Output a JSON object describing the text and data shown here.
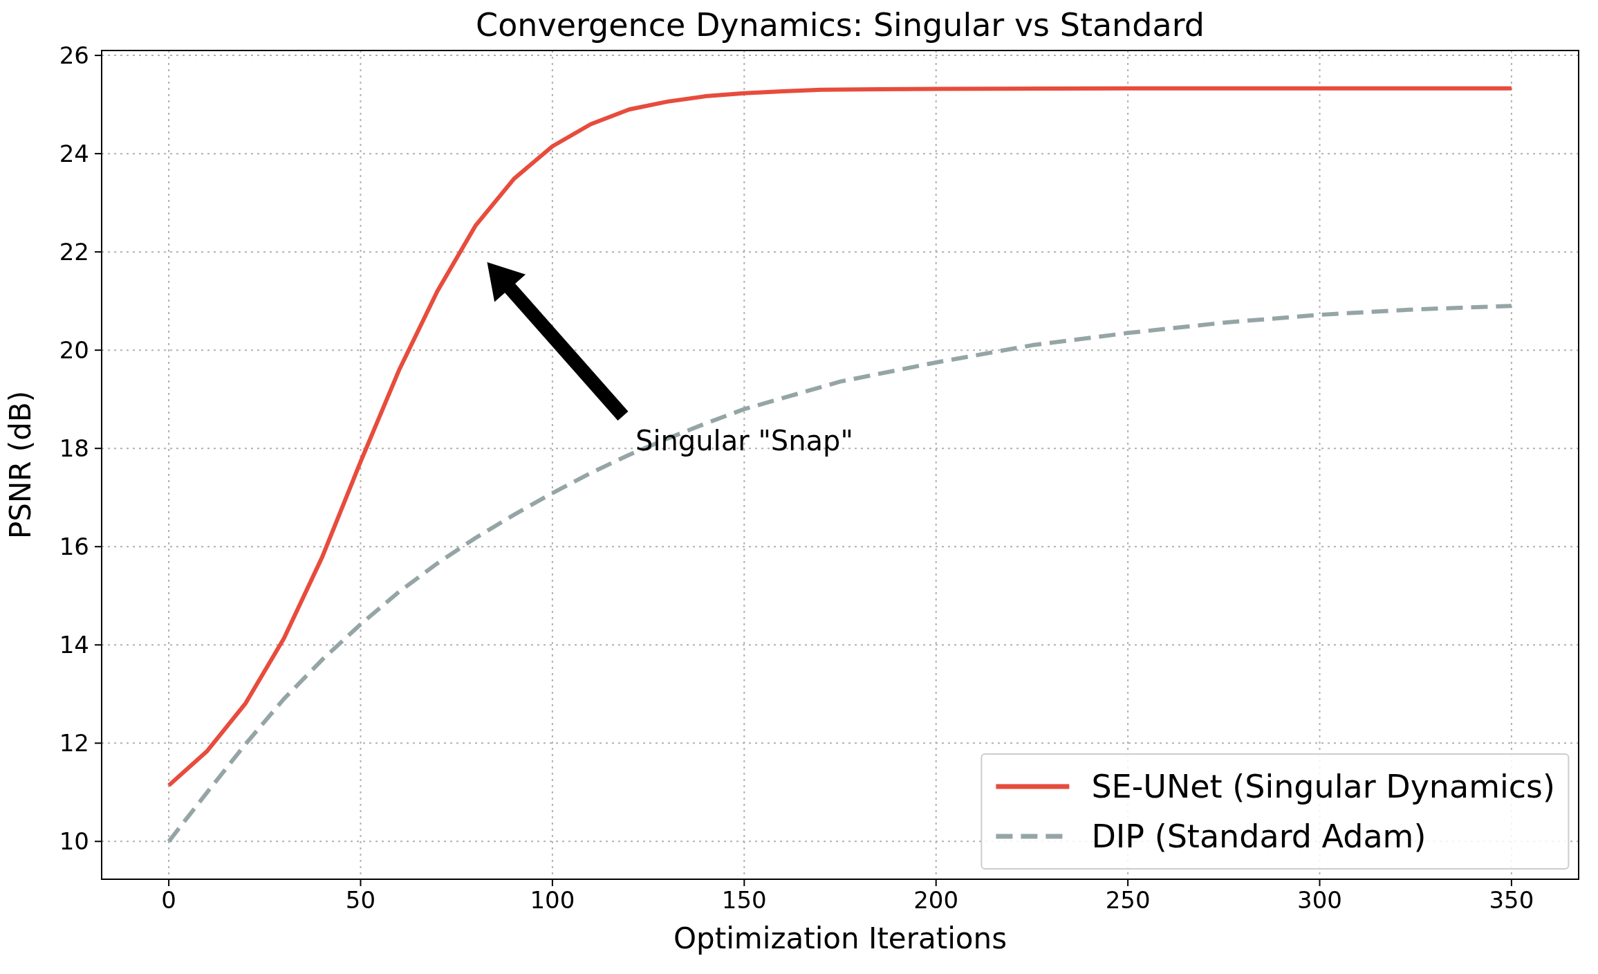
{
  "chart_data": {
    "type": "line",
    "title": "Convergence Dynamics: Singular vs Standard",
    "xlabel": "Optimization Iterations",
    "ylabel": "PSNR (dB)",
    "xlim": [
      -17.5,
      367.5
    ],
    "ylim": [
      9.23,
      26.1
    ],
    "xticks": [
      0,
      50,
      100,
      150,
      200,
      250,
      300,
      350
    ],
    "yticks": [
      10,
      12,
      14,
      16,
      18,
      20,
      22,
      24,
      26
    ],
    "grid": true,
    "legend": "bottom right",
    "marker": "none",
    "annotations": [
      "Singular \"Snap\""
    ],
    "series": [
      {
        "name": "SE-UNet (Singular Dynamics)",
        "color": "#e74c3c",
        "line_style": "solid",
        "x": [
          0,
          10,
          20,
          30,
          40,
          50,
          60,
          70,
          80,
          90,
          100,
          110,
          120,
          130,
          140,
          150,
          160,
          170,
          200,
          250,
          300,
          350
        ],
        "values": [
          11.14,
          11.84,
          12.81,
          14.13,
          15.79,
          17.73,
          19.59,
          21.2,
          22.54,
          23.49,
          24.15,
          24.6,
          24.9,
          25.06,
          25.17,
          25.23,
          25.27,
          25.3,
          25.32,
          25.33,
          25.33,
          25.33
        ]
      },
      {
        "name": "DIP (Standard Adam)",
        "color": "#95a5a6",
        "line_style": "dashed",
        "x": [
          0,
          10,
          20,
          30,
          40,
          50,
          60,
          70,
          80,
          90,
          100,
          110,
          120,
          130,
          140,
          150,
          175,
          200,
          225,
          250,
          275,
          300,
          325,
          350
        ],
        "values": [
          10.0,
          11.0,
          11.98,
          12.9,
          13.7,
          14.42,
          15.08,
          15.66,
          16.18,
          16.65,
          17.09,
          17.5,
          17.87,
          18.2,
          18.51,
          18.8,
          19.36,
          19.75,
          20.1,
          20.35,
          20.56,
          20.72,
          20.83,
          20.9
        ]
      }
    ]
  }
}
